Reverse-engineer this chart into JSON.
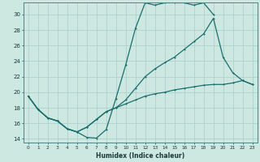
{
  "xlabel": "Humidex (Indice chaleur)",
  "bg_color": "#cce8e0",
  "grid_color": "#aacccc",
  "line_color": "#1a6e6e",
  "xlim": [
    -0.5,
    23.5
  ],
  "ylim": [
    13.5,
    31.5
  ],
  "xticks": [
    0,
    1,
    2,
    3,
    4,
    5,
    6,
    7,
    8,
    9,
    10,
    11,
    12,
    13,
    14,
    15,
    16,
    17,
    18,
    19,
    20,
    21,
    22,
    23
  ],
  "yticks": [
    14,
    16,
    18,
    20,
    22,
    24,
    26,
    28,
    30
  ],
  "line1_x": [
    0,
    1,
    2,
    3,
    4,
    5,
    6,
    7,
    8,
    9,
    10,
    11,
    12,
    13,
    14,
    15,
    16,
    17,
    18,
    19,
    20,
    21,
    22,
    23
  ],
  "line1_y": [
    19.5,
    17.8,
    16.7,
    16.3,
    15.3,
    14.9,
    14.2,
    14.1,
    15.2,
    19.2,
    23.5,
    28.2,
    31.5,
    31.2,
    31.5,
    31.5,
    31.5,
    31.2,
    31.5,
    30.0,
    null,
    null,
    null,
    null
  ],
  "line2_x": [
    0,
    1,
    2,
    3,
    4,
    5,
    6,
    7,
    8,
    9,
    10,
    11,
    12,
    13,
    14,
    15,
    16,
    17,
    18,
    19,
    20,
    21,
    22,
    23
  ],
  "line2_y": [
    19.5,
    17.8,
    16.7,
    16.3,
    15.3,
    14.9,
    15.5,
    16.5,
    17.5,
    18.0,
    19.0,
    20.5,
    22.0,
    23.0,
    23.8,
    24.5,
    25.5,
    26.5,
    27.5,
    29.5,
    24.5,
    22.5,
    21.5,
    21.0
  ],
  "line3_x": [
    0,
    1,
    2,
    3,
    4,
    5,
    6,
    7,
    8,
    9,
    10,
    11,
    12,
    13,
    14,
    15,
    16,
    17,
    18,
    19,
    20,
    21,
    22,
    23
  ],
  "line3_y": [
    19.5,
    17.8,
    16.7,
    16.3,
    15.3,
    14.9,
    15.5,
    16.5,
    17.5,
    18.0,
    18.5,
    19.0,
    19.5,
    19.8,
    20.0,
    20.3,
    20.5,
    20.7,
    20.9,
    21.0,
    21.0,
    21.2,
    21.5,
    21.0
  ]
}
